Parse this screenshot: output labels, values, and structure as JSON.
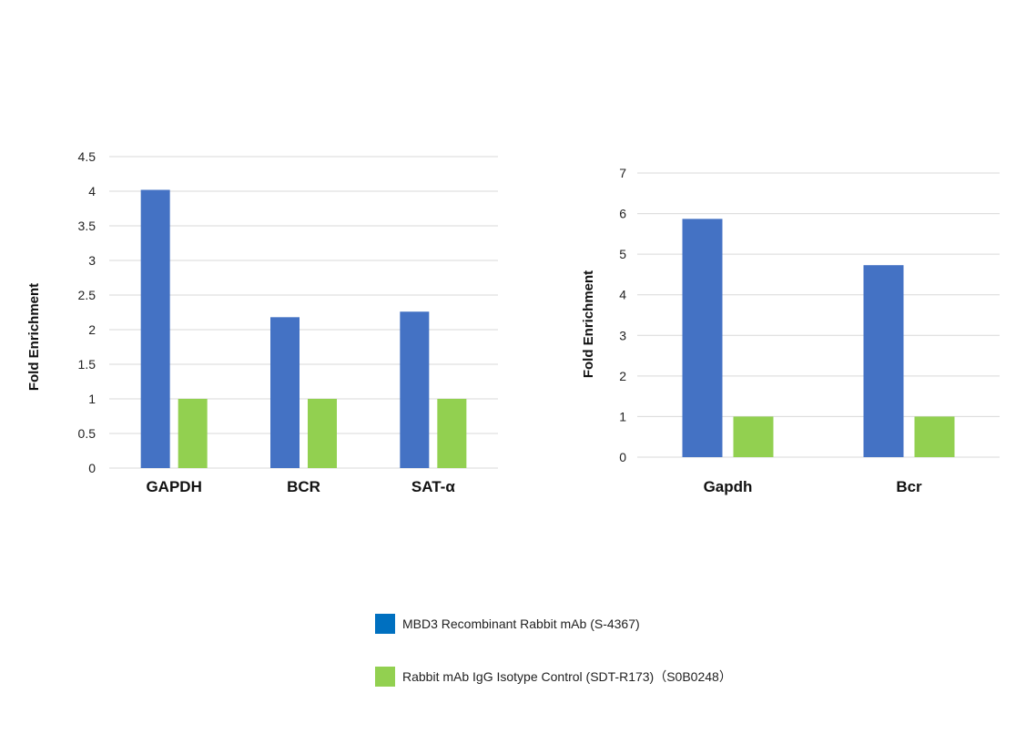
{
  "chart_data": [
    {
      "type": "bar",
      "categories": [
        "GAPDH",
        "BCR",
        "SAT-α"
      ],
      "series": [
        {
          "name": "MBD3 Recombinant Rabbit mAb (S-4367)",
          "values": [
            4.02,
            2.18,
            2.26
          ]
        },
        {
          "name": "Rabbit mAb IgG Isotype Control (SDT-R173)（S0B0248）",
          "values": [
            1,
            1,
            1
          ]
        }
      ],
      "title": "",
      "xlabel": "",
      "ylabel": "Fold Enrichment",
      "ylim": [
        0,
        4.5
      ],
      "yticks": [
        "0",
        "0.5",
        "1",
        "1.5",
        "2",
        "2.5",
        "3",
        "3.5",
        "4",
        "4.5"
      ],
      "grid": true
    },
    {
      "type": "bar",
      "categories": [
        "Gapdh",
        "Bcr"
      ],
      "series": [
        {
          "name": "MBD3 Recombinant Rabbit mAb (S-4367)",
          "values": [
            5.87,
            4.73
          ]
        },
        {
          "name": "Rabbit mAb IgG Isotype Control (SDT-R173)（S0B0248）",
          "values": [
            1,
            1
          ]
        }
      ],
      "title": "",
      "xlabel": "",
      "ylabel": "Fold Enrichment",
      "ylim": [
        0,
        7
      ],
      "yticks": [
        "0",
        "1",
        "2",
        "3",
        "4",
        "5",
        "6",
        "7"
      ],
      "grid": true
    }
  ],
  "legend": {
    "placement": "bottom",
    "items": [
      {
        "label": "MBD3 Recombinant Rabbit mAb (S-4367)",
        "color": "#0070c0"
      },
      {
        "label": "Rabbit mAb IgG Isotype Control (SDT-R173)（S0B0248）",
        "color": "#92d050"
      }
    ]
  },
  "colors": {
    "series_1": "#4472c4",
    "series_2": "#92d050",
    "grid": "#d9d9d9"
  }
}
